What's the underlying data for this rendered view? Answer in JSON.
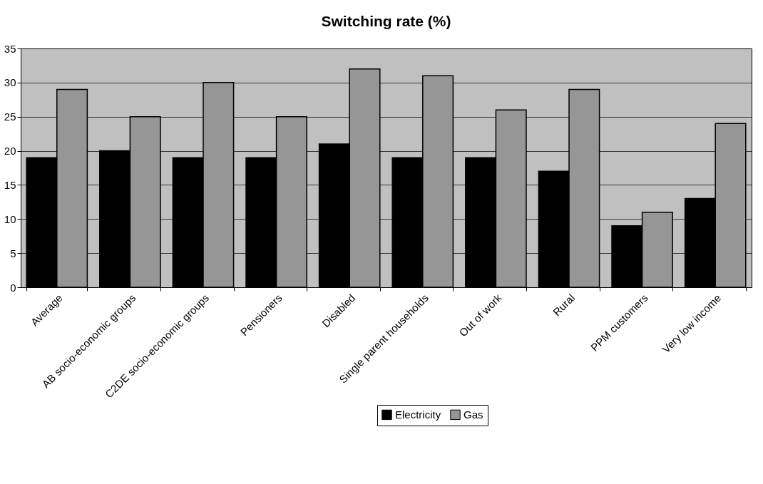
{
  "chart_data": {
    "type": "bar",
    "title": "Switching rate (%)",
    "categories": [
      "Average",
      "AB socio-economic groups",
      "C2DE socio-economic groups",
      "Pensioners",
      "Disabled",
      "Single parent households",
      "Out of work",
      "Rural",
      "PPM customers",
      "Very low income"
    ],
    "series": [
      {
        "name": "Electricity",
        "color": "#000000",
        "values": [
          19,
          20,
          19,
          19,
          21,
          19,
          19,
          17,
          9,
          13
        ]
      },
      {
        "name": "Gas",
        "color": "#969696",
        "values": [
          29,
          25,
          30,
          25,
          32,
          31,
          26,
          29,
          11,
          24
        ]
      }
    ],
    "ylim": [
      0,
      35
    ],
    "yticks": [
      0,
      5,
      10,
      15,
      20,
      25,
      30,
      35
    ],
    "grid": "y",
    "legend": "bottom"
  }
}
